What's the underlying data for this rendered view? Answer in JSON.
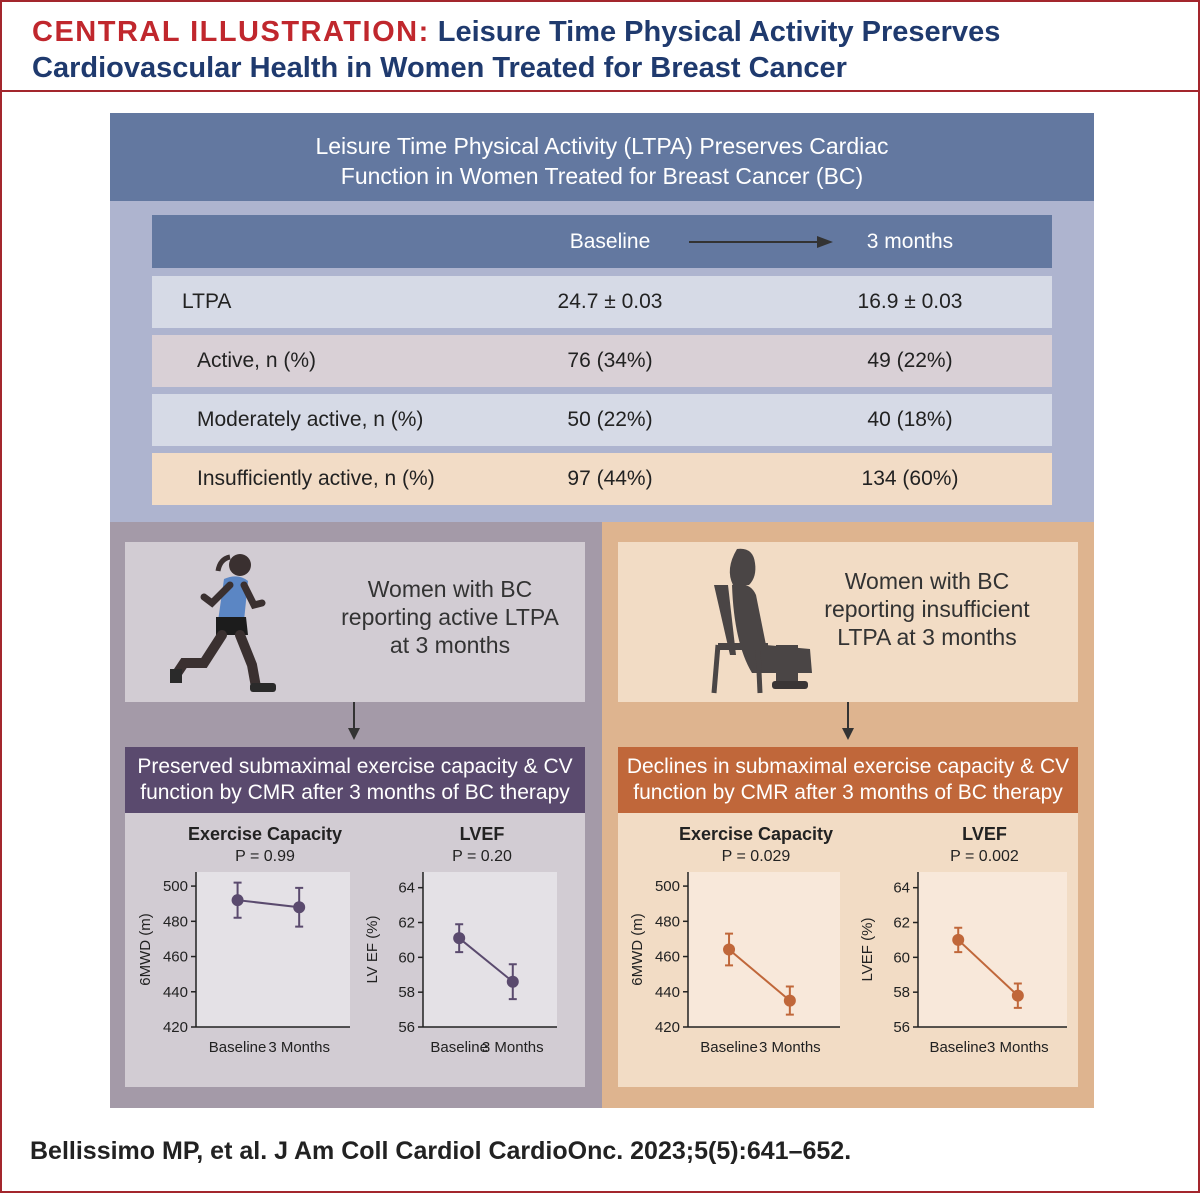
{
  "header": {
    "label": "CENTRAL ILLUSTRATION:",
    "title": "Leisure Time Physical Activity Preserves Cardiovascular Health in Women Treated for Breast Cancer"
  },
  "summary": {
    "title": "Leisure Time Physical Activity (LTPA) Preserves Cardiac Function in Women Treated for Breast Cancer (BC)",
    "table": {
      "columns": [
        "Baseline",
        "3 months"
      ],
      "rows": [
        [
          "LTPA",
          "24.7 ± 0.03",
          "16.9 ± 0.03"
        ],
        [
          "Active, n (%)",
          "76 (34%)",
          "49 (22%)"
        ],
        [
          "Moderately active, n (%)",
          "50 (22%)",
          "40 (18%)"
        ],
        [
          "Insufficiently active, n (%)",
          "97 (44%)",
          "134 (60%)"
        ]
      ]
    }
  },
  "groups": [
    {
      "description": "Women with BC reporting active LTPA at 3 months",
      "finding": "Preserved submaximal exercise capacity & CV function by CMR after 3 months of BC therapy"
    },
    {
      "description": "Women with BC reporting insufficient LTPA at 3 months",
      "finding": "Declines in submaximal exercise capacity & CV function by CMR after 3 months of BC therapy"
    }
  ],
  "chart_data": [
    {
      "type": "line",
      "title": "Exercise Capacity",
      "subtitle": "P = 0.99",
      "categories": [
        "Baseline",
        "3 Months"
      ],
      "ylabel": "6MWD (m)",
      "ylim": [
        420,
        508
      ],
      "yticks": [
        420,
        440,
        460,
        480,
        500
      ],
      "background": "#e4e1e6",
      "series": [
        {
          "color": "#5a4a6e",
          "values": [
            492,
            488
          ],
          "errors": [
            10,
            11
          ]
        }
      ]
    },
    {
      "type": "line",
      "title": "LVEF",
      "subtitle": "P = 0.20",
      "categories": [
        "Baseline",
        "3 Months"
      ],
      "ylabel": "LV EF (%)",
      "ylim": [
        56,
        64.9
      ],
      "yticks": [
        56,
        58,
        60,
        62,
        64
      ],
      "background": "#e4e1e6",
      "series": [
        {
          "color": "#5a4a6e",
          "values": [
            61.1,
            58.6
          ],
          "errors": [
            0.8,
            1.0
          ]
        }
      ]
    },
    {
      "type": "line",
      "title": "Exercise Capacity",
      "subtitle": "P = 0.029",
      "categories": [
        "Baseline",
        "3 Months"
      ],
      "ylabel": "6MWD (m)",
      "ylim": [
        420,
        508
      ],
      "yticks": [
        420,
        440,
        460,
        480,
        500
      ],
      "background": "#f8e8da",
      "series": [
        {
          "color": "#c0673a",
          "values": [
            464,
            435
          ],
          "errors": [
            9,
            8
          ]
        }
      ]
    },
    {
      "type": "line",
      "title": "LVEF",
      "subtitle": "P = 0.002",
      "categories": [
        "Baseline",
        "3 Months"
      ],
      "ylabel": "LVEF (%)",
      "ylim": [
        56,
        64.9
      ],
      "yticks": [
        56,
        58,
        60,
        62,
        64
      ],
      "background": "#f8e8da",
      "series": [
        {
          "color": "#c0673a",
          "values": [
            61.0,
            57.8
          ],
          "errors": [
            0.7,
            0.7
          ]
        }
      ]
    }
  ],
  "citation": "Bellissimo MP, et al. J Am Coll Cardiol CardioOnc. 2023;5(5):641–652."
}
